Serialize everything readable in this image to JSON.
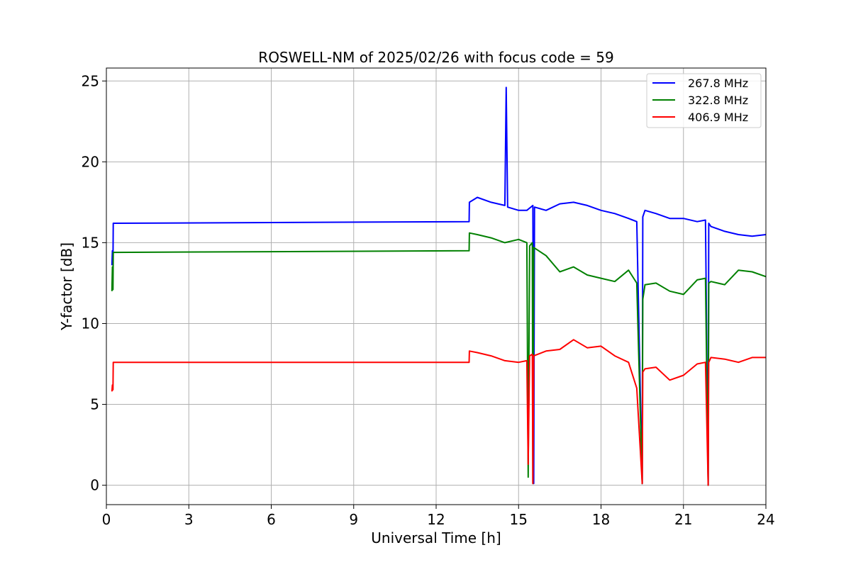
{
  "chart_data": {
    "type": "line",
    "title": "ROSWELL-NM of 2025/02/26 with focus code = 59",
    "xlabel": "Universal Time [h]",
    "ylabel": "Y-factor [dB]",
    "xlim": [
      0,
      24
    ],
    "ylim": [
      -1.2,
      25.8
    ],
    "xticks": [
      0,
      3,
      6,
      9,
      12,
      15,
      18,
      21,
      24
    ],
    "yticks": [
      0,
      5,
      10,
      15,
      20,
      25
    ],
    "grid": true,
    "legend_position": "top-right",
    "series": [
      {
        "name": "267.8 MHz",
        "color": "#0000ff",
        "x": [
          0.2,
          0.22,
          0.24,
          0.25,
          0.26,
          13.2,
          13.21,
          13.5,
          14.0,
          14.5,
          14.55,
          14.6,
          15.0,
          15.3,
          15.52,
          15.55,
          15.58,
          16.0,
          16.5,
          17.0,
          17.5,
          18.0,
          18.5,
          19.0,
          19.3,
          19.5,
          19.52,
          19.6,
          20.0,
          20.5,
          21.0,
          21.5,
          21.8,
          21.9,
          21.92,
          22.0,
          22.5,
          23.0,
          23.5,
          24.0
        ],
        "y": [
          13.6,
          14.5,
          13.7,
          16.2,
          16.2,
          16.3,
          17.5,
          17.8,
          17.5,
          17.3,
          24.6,
          17.2,
          17.0,
          17.0,
          17.3,
          0.1,
          17.2,
          17.0,
          17.4,
          17.5,
          17.3,
          17.0,
          16.8,
          16.5,
          16.3,
          0.1,
          16.6,
          17.0,
          16.8,
          16.5,
          16.5,
          16.3,
          16.4,
          0.0,
          16.2,
          16.0,
          15.7,
          15.5,
          15.4,
          15.5
        ]
      },
      {
        "name": "322.8 MHz",
        "color": "#008000",
        "x": [
          0.2,
          0.22,
          0.24,
          0.25,
          0.26,
          13.2,
          13.21,
          13.5,
          14.0,
          14.5,
          15.0,
          15.3,
          15.35,
          15.4,
          15.5,
          15.52,
          15.55,
          16.0,
          16.5,
          17.0,
          17.5,
          18.0,
          18.5,
          19.0,
          19.3,
          19.5,
          19.52,
          19.6,
          20.0,
          20.5,
          21.0,
          21.5,
          21.8,
          21.9,
          21.92,
          22.0,
          22.5,
          23.0,
          23.5,
          24.0
        ],
        "y": [
          12.0,
          13.5,
          12.1,
          14.4,
          14.4,
          14.5,
          15.6,
          15.5,
          15.3,
          15.0,
          15.2,
          15.0,
          0.5,
          14.8,
          15.0,
          0.1,
          14.7,
          14.2,
          13.2,
          13.5,
          13.0,
          12.8,
          12.6,
          13.3,
          12.5,
          0.1,
          11.5,
          12.4,
          12.5,
          12.0,
          11.8,
          12.7,
          12.8,
          0.0,
          12.5,
          12.6,
          12.4,
          13.3,
          13.2,
          12.9
        ]
      },
      {
        "name": "406.9 MHz",
        "color": "#ff0000",
        "x": [
          0.2,
          0.22,
          0.24,
          0.25,
          0.26,
          13.2,
          13.21,
          13.5,
          14.0,
          14.5,
          15.0,
          15.3,
          15.35,
          15.4,
          15.5,
          15.52,
          15.55,
          16.0,
          16.5,
          17.0,
          17.5,
          18.0,
          18.5,
          19.0,
          19.3,
          19.5,
          19.52,
          19.6,
          20.0,
          20.5,
          21.0,
          21.5,
          21.8,
          21.9,
          21.92,
          22.0,
          22.5,
          23.0,
          23.5,
          24.0
        ],
        "y": [
          5.8,
          6.2,
          5.9,
          7.6,
          7.6,
          7.6,
          8.3,
          8.2,
          8.0,
          7.7,
          7.6,
          7.7,
          1.3,
          8.0,
          8.1,
          0.1,
          8.0,
          8.3,
          8.4,
          9.0,
          8.5,
          8.6,
          8.0,
          7.6,
          6.0,
          0.1,
          7.0,
          7.2,
          7.3,
          6.5,
          6.8,
          7.5,
          7.6,
          0.0,
          7.6,
          7.9,
          7.8,
          7.6,
          7.9,
          7.9
        ]
      }
    ]
  }
}
